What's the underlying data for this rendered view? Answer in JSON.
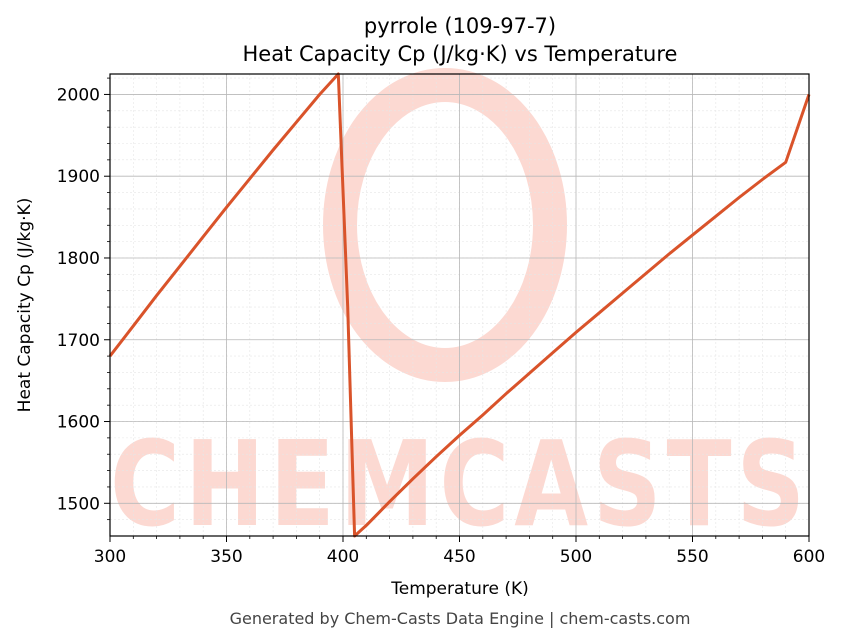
{
  "chart_data": {
    "type": "line",
    "title": "pyrrole (109-97-7)",
    "subtitle": "Heat Capacity Cp (J/kg·K) vs Temperature",
    "xlabel": "Temperature (K)",
    "ylabel": "Heat Capacity Cp (J/kg·K)",
    "xlim": [
      300,
      600
    ],
    "ylim": [
      1460,
      2025
    ],
    "xticks": [
      300,
      350,
      400,
      450,
      500,
      550,
      600
    ],
    "yticks": [
      1500,
      1600,
      1700,
      1800,
      1900,
      2000
    ],
    "grid": true,
    "line_color": "#d9532a",
    "series": [
      {
        "x": [
          300,
          310,
          320,
          330,
          340,
          350,
          360,
          370,
          380,
          390,
          398,
          402,
          405,
          410,
          420,
          430,
          440,
          450,
          460,
          470,
          480,
          490,
          500,
          510,
          520,
          530,
          540,
          550,
          560,
          570,
          580,
          590,
          600
        ],
        "y": [
          1680,
          1717,
          1754,
          1790,
          1826,
          1862,
          1897,
          1932,
          1966,
          2000,
          2027,
          1740,
          1460,
          1473,
          1502,
          1530,
          1557,
          1583,
          1608,
          1634,
          1659,
          1684,
          1709,
          1733,
          1757,
          1781,
          1805,
          1828,
          1851,
          1874,
          1896,
          1917,
          2000
        ]
      }
    ]
  },
  "watermark": {
    "text": "CHEMCASTS",
    "color": "#fcd9d2"
  },
  "footer": "Generated by Chem-Casts Data Engine | chem-casts.com"
}
